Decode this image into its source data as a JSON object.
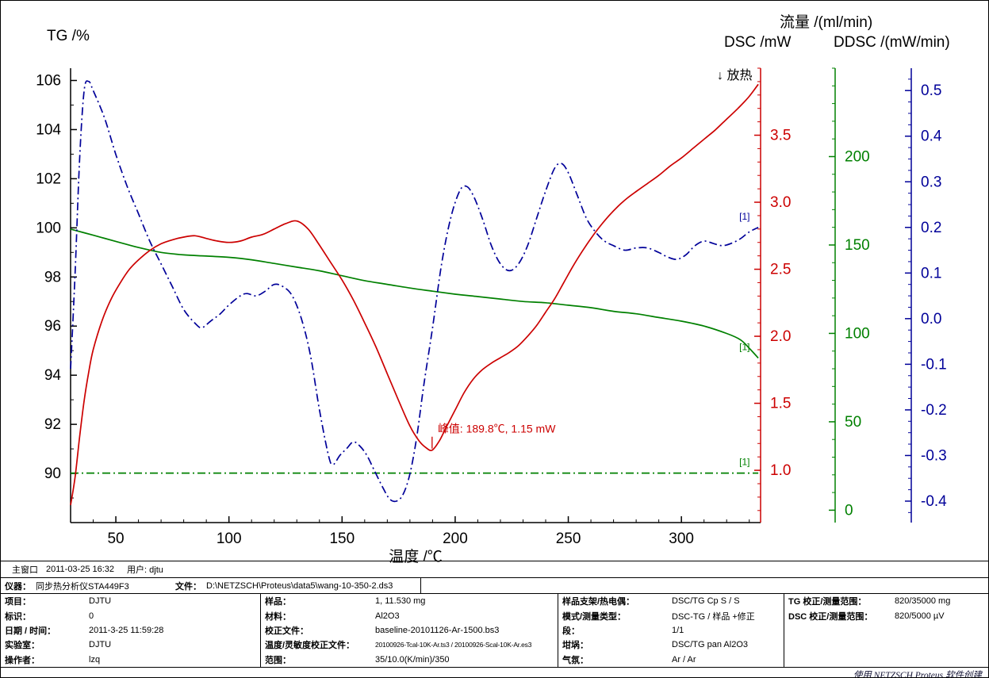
{
  "chart": {
    "tg_title": "TG /%",
    "dsc_title": "DSC /mW",
    "flow_title": "流量 /(ml/min)",
    "ddsc_title": "DDSC /(mW/min)",
    "x_title": "温度 /℃",
    "exo_label": "↓ 放热"
  },
  "statusbar": {
    "window": "主窗口",
    "datetime": "2011-03-25 16:32",
    "user": "用户: djtu"
  },
  "credit": "使用 NETZSCH Proteus 软件创建",
  "chart_data": {
    "type": "line",
    "title": "",
    "xlabel": "温度 /℃",
    "grid": false,
    "axes": {
      "x": {
        "min": 30,
        "max": 335,
        "ticks": [
          50,
          100,
          150,
          200,
          250,
          300
        ],
        "minor_step": 10,
        "decimals": 0,
        "color": "#000000"
      },
      "tg": {
        "label": "TG /%",
        "min": 88.0,
        "max": 106.5,
        "ticks": [
          90,
          92,
          94,
          96,
          98,
          100,
          102,
          104,
          106
        ],
        "minor_step": 1,
        "decimals": 0,
        "color": "#000000"
      },
      "dsc": {
        "label": "DSC /mW",
        "min": 0.61,
        "max": 4.0,
        "ticks": [
          1.0,
          1.5,
          2.0,
          2.5,
          3.0,
          3.5
        ],
        "minor_step": 0.1,
        "decimals": 1,
        "color": "#cc0000"
      },
      "flow": {
        "label": "流量 /(ml/min)",
        "min": -7,
        "max": 250,
        "ticks": [
          0,
          50,
          100,
          150,
          200
        ],
        "minor_step": 10,
        "decimals": 0,
        "color": "#008000"
      },
      "ddsc": {
        "label": "DDSC /(mW/min)",
        "min": -0.447,
        "max": 0.549,
        "ticks": [
          -0.4,
          -0.3,
          -0.2,
          -0.1,
          0.0,
          0.1,
          0.2,
          0.3,
          0.4,
          0.5
        ],
        "minor_step": 0.025,
        "decimals": 1,
        "color": "#000099"
      }
    },
    "series": [
      {
        "name": "Flow",
        "axis": "flow",
        "color": "#008000",
        "style": "dashdot",
        "tag": "[1]",
        "points": [
          [
            30,
            21
          ],
          [
            334,
            21
          ]
        ]
      },
      {
        "name": "TG",
        "axis": "tg",
        "color": "#008000",
        "style": "solid",
        "tag": "[1]",
        "points": [
          [
            30,
            99.95
          ],
          [
            40,
            99.7
          ],
          [
            50,
            99.45
          ],
          [
            60,
            99.2
          ],
          [
            70,
            99.0
          ],
          [
            80,
            98.9
          ],
          [
            90,
            98.85
          ],
          [
            100,
            98.8
          ],
          [
            110,
            98.7
          ],
          [
            120,
            98.55
          ],
          [
            130,
            98.4
          ],
          [
            140,
            98.25
          ],
          [
            150,
            98.05
          ],
          [
            160,
            97.85
          ],
          [
            170,
            97.7
          ],
          [
            180,
            97.55
          ],
          [
            190,
            97.42
          ],
          [
            200,
            97.3
          ],
          [
            210,
            97.2
          ],
          [
            220,
            97.1
          ],
          [
            230,
            97.0
          ],
          [
            240,
            96.95
          ],
          [
            250,
            96.85
          ],
          [
            260,
            96.75
          ],
          [
            270,
            96.6
          ],
          [
            280,
            96.5
          ],
          [
            290,
            96.35
          ],
          [
            300,
            96.2
          ],
          [
            310,
            96.0
          ],
          [
            320,
            95.7
          ],
          [
            326,
            95.45
          ],
          [
            330,
            95.1
          ],
          [
            334,
            94.7
          ]
        ]
      },
      {
        "name": "DDSC",
        "axis": "ddsc",
        "color": "#000099",
        "style": "dashdot",
        "tag": "[1]",
        "points": [
          [
            30,
            -0.11
          ],
          [
            32,
            0.1
          ],
          [
            34,
            0.35
          ],
          [
            36,
            0.5
          ],
          [
            38,
            0.52
          ],
          [
            40,
            0.5
          ],
          [
            45,
            0.44
          ],
          [
            50,
            0.36
          ],
          [
            55,
            0.29
          ],
          [
            60,
            0.23
          ],
          [
            65,
            0.17
          ],
          [
            70,
            0.12
          ],
          [
            75,
            0.07
          ],
          [
            80,
            0.02
          ],
          [
            85,
            -0.01
          ],
          [
            88,
            -0.02
          ],
          [
            92,
            -0.005
          ],
          [
            96,
            0.01
          ],
          [
            100,
            0.03
          ],
          [
            105,
            0.05
          ],
          [
            108,
            0.055
          ],
          [
            112,
            0.05
          ],
          [
            116,
            0.06
          ],
          [
            120,
            0.075
          ],
          [
            124,
            0.07
          ],
          [
            128,
            0.05
          ],
          [
            132,
            0.0
          ],
          [
            136,
            -0.08
          ],
          [
            140,
            -0.2
          ],
          [
            144,
            -0.3
          ],
          [
            146,
            -0.32
          ],
          [
            149,
            -0.3
          ],
          [
            152,
            -0.285
          ],
          [
            155,
            -0.27
          ],
          [
            158,
            -0.28
          ],
          [
            161,
            -0.3
          ],
          [
            164,
            -0.33
          ],
          [
            168,
            -0.37
          ],
          [
            171,
            -0.395
          ],
          [
            174,
            -0.4
          ],
          [
            177,
            -0.385
          ],
          [
            180,
            -0.34
          ],
          [
            183,
            -0.26
          ],
          [
            186,
            -0.15
          ],
          [
            190,
            -0.02
          ],
          [
            194,
            0.12
          ],
          [
            198,
            0.22
          ],
          [
            202,
            0.28
          ],
          [
            205,
            0.29
          ],
          [
            208,
            0.27
          ],
          [
            212,
            0.22
          ],
          [
            216,
            0.16
          ],
          [
            220,
            0.12
          ],
          [
            224,
            0.105
          ],
          [
            228,
            0.12
          ],
          [
            232,
            0.16
          ],
          [
            236,
            0.22
          ],
          [
            240,
            0.28
          ],
          [
            244,
            0.33
          ],
          [
            247,
            0.34
          ],
          [
            250,
            0.32
          ],
          [
            254,
            0.27
          ],
          [
            258,
            0.22
          ],
          [
            262,
            0.19
          ],
          [
            266,
            0.17
          ],
          [
            270,
            0.16
          ],
          [
            275,
            0.15
          ],
          [
            280,
            0.155
          ],
          [
            285,
            0.155
          ],
          [
            290,
            0.145
          ],
          [
            294,
            0.135
          ],
          [
            298,
            0.13
          ],
          [
            302,
            0.14
          ],
          [
            306,
            0.16
          ],
          [
            310,
            0.17
          ],
          [
            314,
            0.165
          ],
          [
            318,
            0.16
          ],
          [
            322,
            0.165
          ],
          [
            326,
            0.175
          ],
          [
            330,
            0.19
          ],
          [
            334,
            0.2
          ]
        ]
      },
      {
        "name": "DSC",
        "axis": "dsc",
        "color": "#cc0000",
        "style": "solid",
        "tag": null,
        "points": [
          [
            30,
            0.74
          ],
          [
            32,
            0.95
          ],
          [
            34,
            1.25
          ],
          [
            36,
            1.52
          ],
          [
            38,
            1.73
          ],
          [
            40,
            1.9
          ],
          [
            44,
            2.12
          ],
          [
            48,
            2.28
          ],
          [
            52,
            2.4
          ],
          [
            56,
            2.5
          ],
          [
            60,
            2.57
          ],
          [
            65,
            2.64
          ],
          [
            70,
            2.69
          ],
          [
            75,
            2.72
          ],
          [
            80,
            2.74
          ],
          [
            85,
            2.75
          ],
          [
            90,
            2.73
          ],
          [
            95,
            2.71
          ],
          [
            100,
            2.7
          ],
          [
            105,
            2.71
          ],
          [
            110,
            2.74
          ],
          [
            115,
            2.76
          ],
          [
            120,
            2.8
          ],
          [
            125,
            2.84
          ],
          [
            130,
            2.86
          ],
          [
            135,
            2.8
          ],
          [
            140,
            2.68
          ],
          [
            145,
            2.55
          ],
          [
            150,
            2.42
          ],
          [
            155,
            2.27
          ],
          [
            160,
            2.1
          ],
          [
            165,
            1.92
          ],
          [
            170,
            1.72
          ],
          [
            175,
            1.52
          ],
          [
            180,
            1.33
          ],
          [
            184,
            1.22
          ],
          [
            187,
            1.17
          ],
          [
            189.8,
            1.15
          ],
          [
            193,
            1.22
          ],
          [
            196,
            1.32
          ],
          [
            200,
            1.45
          ],
          [
            204,
            1.58
          ],
          [
            208,
            1.68
          ],
          [
            212,
            1.75
          ],
          [
            216,
            1.8
          ],
          [
            220,
            1.84
          ],
          [
            224,
            1.88
          ],
          [
            228,
            1.93
          ],
          [
            232,
            2.0
          ],
          [
            236,
            2.08
          ],
          [
            240,
            2.18
          ],
          [
            244,
            2.28
          ],
          [
            248,
            2.4
          ],
          [
            252,
            2.52
          ],
          [
            256,
            2.63
          ],
          [
            260,
            2.73
          ],
          [
            264,
            2.82
          ],
          [
            268,
            2.9
          ],
          [
            272,
            2.97
          ],
          [
            276,
            3.03
          ],
          [
            280,
            3.08
          ],
          [
            285,
            3.14
          ],
          [
            290,
            3.2
          ],
          [
            295,
            3.27
          ],
          [
            300,
            3.33
          ],
          [
            305,
            3.4
          ],
          [
            310,
            3.47
          ],
          [
            315,
            3.54
          ],
          [
            320,
            3.62
          ],
          [
            325,
            3.7
          ],
          [
            330,
            3.79
          ],
          [
            334,
            3.88
          ]
        ]
      }
    ],
    "annotations": [
      {
        "text": "峰值: 189.8℃, 1.15 mW",
        "axis": "dsc",
        "x": 189.8,
        "value": 1.15,
        "color": "#cc0000"
      }
    ]
  },
  "info_table": {
    "instrument": {
      "label": "仪器：",
      "value": "同步热分析仪STA449F3"
    },
    "file": {
      "label": "文件：",
      "value": "D:\\NETZSCH\\Proteus\\data5\\wang-10-350-2.ds3"
    },
    "col1": [
      {
        "label": "项目：",
        "value": "DJTU"
      },
      {
        "label": "标识：",
        "value": "0"
      },
      {
        "label": "日期 / 时间：",
        "value": "2011-3-25 11:59:28"
      },
      {
        "label": "实验室：",
        "value": "DJTU"
      },
      {
        "label": "操作者：",
        "value": "lzq"
      }
    ],
    "col2": [
      {
        "label": "样品：",
        "value": "1, 11.530 mg"
      },
      {
        "label": "材料：",
        "value": "Al2O3"
      },
      {
        "label": "校正文件：",
        "value": "baseline-20101126-Ar-1500.bs3"
      },
      {
        "label": "温度/灵敏度校正文件：",
        "value": "20100926-Tcal-10K-Ar.ts3 / 20100926-Scal-10K-Ar.es3"
      },
      {
        "label": "范围：",
        "value": "35/10.0(K/min)/350"
      }
    ],
    "col3": [
      {
        "label": "样品支架/热电偶：",
        "value": "DSC/TG Cp S / S"
      },
      {
        "label": "模式/测量类型：",
        "value": "DSC-TG / 样品 +修正"
      },
      {
        "label": "段：",
        "value": "1/1"
      },
      {
        "label": "坩埚：",
        "value": "DSC/TG pan Al2O3"
      },
      {
        "label": "气氛：",
        "value": "Ar / Ar"
      }
    ],
    "col4": [
      {
        "label": "TG 校正/测量范围：",
        "value": "820/35000 mg"
      },
      {
        "label": "DSC 校正/测量范围：",
        "value": "820/5000 µV"
      }
    ]
  }
}
